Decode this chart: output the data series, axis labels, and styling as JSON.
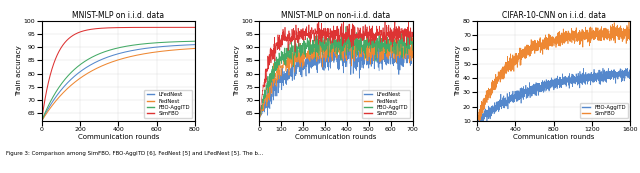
{
  "subplot1": {
    "title": "MNIST-MLP on i.i.d. data",
    "xlabel": "Communication rounds",
    "ylabel": "Train accuracy",
    "xlim": [
      0,
      800
    ],
    "ylim": [
      62,
      100
    ],
    "yticks": [
      65,
      70,
      75,
      80,
      85,
      90,
      95,
      100
    ],
    "xticks": [
      0,
      200,
      400,
      600,
      800
    ],
    "series": {
      "LFedNest": {
        "color": "#5588cc"
      },
      "FedNest": {
        "color": "#ee8833"
      },
      "FBO-AggITD": {
        "color": "#44aa66"
      },
      "SimFBO": {
        "color": "#dd3333"
      }
    },
    "curves": {
      "SimFBO": {
        "start": 62,
        "end": 97.5,
        "rate": 0.015
      },
      "FBO-AggITD": {
        "start": 62,
        "end": 92.5,
        "rate": 0.006
      },
      "LFedNest": {
        "start": 62,
        "end": 91.5,
        "rate": 0.005
      },
      "FedNest": {
        "start": 62,
        "end": 90.5,
        "rate": 0.0042
      }
    }
  },
  "subplot2": {
    "title": "MNIST-MLP on non-i.i.d. data",
    "xlabel": "Communication rounds",
    "ylabel": "Train accuracy",
    "xlim": [
      0,
      700
    ],
    "ylim": [
      62,
      100
    ],
    "yticks": [
      65,
      70,
      75,
      80,
      85,
      90,
      95,
      100
    ],
    "xticks": [
      0,
      100,
      200,
      300,
      400,
      500,
      600,
      700
    ],
    "series": {
      "LFedNest": {
        "color": "#5588cc"
      },
      "FedNest": {
        "color": "#ee8833"
      },
      "FBO-AggITD": {
        "color": "#44aa66"
      },
      "SimFBO": {
        "color": "#dd3333"
      }
    },
    "curves": {
      "SimFBO": {
        "start": 63,
        "end": 95.0,
        "rate": 0.025,
        "noise": 1.8
      },
      "FBO-AggITD": {
        "start": 63,
        "end": 91.0,
        "rate": 0.016,
        "noise": 2.0
      },
      "FedNest": {
        "start": 63,
        "end": 89.5,
        "rate": 0.013,
        "noise": 2.2
      },
      "LFedNest": {
        "start": 63,
        "end": 86.5,
        "rate": 0.01,
        "noise": 2.5
      }
    }
  },
  "subplot3": {
    "title": "CIFAR-10-CNN on i.i.d. data",
    "xlabel": "Communication rounds",
    "ylabel": "Train accuracy",
    "xlim": [
      0,
      1600
    ],
    "ylim": [
      10,
      80
    ],
    "yticks": [
      10,
      20,
      30,
      40,
      50,
      60,
      70,
      80
    ],
    "xticks": [
      0,
      400,
      800,
      1200,
      1600
    ],
    "series": {
      "FBO-AggITD": {
        "color": "#5588cc"
      },
      "SimFBO": {
        "color": "#ee8833"
      }
    },
    "curves": {
      "SimFBO": {
        "start": 10,
        "end": 72.0,
        "rate": 0.003,
        "noise": 2.5
      },
      "FBO-AggITD": {
        "start": 10,
        "end": 46.0,
        "rate": 0.0016,
        "noise": 2.0
      }
    }
  }
}
